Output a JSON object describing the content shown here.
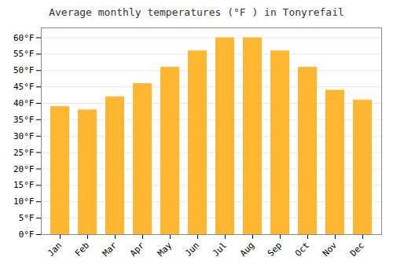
{
  "chart_data": {
    "type": "bar",
    "title": "Average monthly temperatures (°F ) in Tonyrefail",
    "categories": [
      "Jan",
      "Feb",
      "Mar",
      "Apr",
      "May",
      "Jun",
      "Jul",
      "Aug",
      "Sep",
      "Oct",
      "Nov",
      "Dec"
    ],
    "values": [
      39,
      38,
      42,
      46,
      51,
      56,
      60,
      60,
      56,
      51,
      44,
      41
    ],
    "color": "#FFB732",
    "ylim": [
      0,
      63
    ],
    "yticks": [
      {
        "value": 0,
        "label": "0°F"
      },
      {
        "value": 5,
        "label": "5°F"
      },
      {
        "value": 10,
        "label": "10°F"
      },
      {
        "value": 15,
        "label": "15°F"
      },
      {
        "value": 20,
        "label": "20°F"
      },
      {
        "value": 25,
        "label": "25°F"
      },
      {
        "value": 30,
        "label": "30°F"
      },
      {
        "value": 35,
        "label": "35°F"
      },
      {
        "value": 40,
        "label": "40°F"
      },
      {
        "value": 45,
        "label": "45°F"
      },
      {
        "value": 50,
        "label": "50°F"
      },
      {
        "value": 55,
        "label": "55°F"
      },
      {
        "value": 60,
        "label": "60°F"
      }
    ],
    "grid": true
  }
}
